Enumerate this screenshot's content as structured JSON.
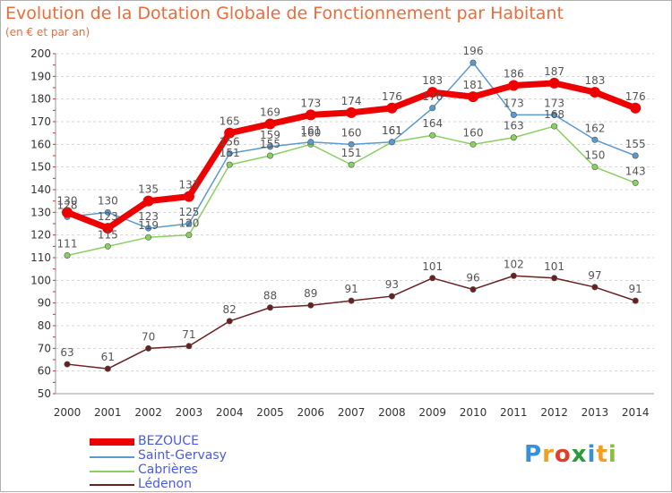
{
  "title": "Evolution de la Dotation Globale de Fonctionnement par Habitant",
  "subtitle": "(en € et par an)",
  "logo": {
    "text": "Proxiti",
    "letters": [
      "P",
      "r",
      "o",
      "x",
      "i",
      "t",
      "i"
    ],
    "colors": [
      "#3a8fd6",
      "#f0a020",
      "#e0402a",
      "#2a9a3a",
      "#3a8fd6",
      "#f0a020",
      "#8ac03a"
    ]
  },
  "chart_data": {
    "type": "line",
    "x": [
      "2000",
      "2001",
      "2002",
      "2003",
      "2004",
      "2005",
      "2006",
      "2007",
      "2008",
      "2009",
      "2010",
      "2011",
      "2012",
      "2013",
      "2014"
    ],
    "ylim": [
      50,
      200
    ],
    "yticks": [
      "50",
      "60",
      "70",
      "80",
      "90",
      "100",
      "110",
      "120",
      "130",
      "140",
      "150",
      "160",
      "170",
      "180",
      "190",
      "200"
    ],
    "grid": "horizontal dashed",
    "legend_position": "bottom-left",
    "series": [
      {
        "name": "BEZOUCE",
        "color": "#ee0000",
        "text_color": "#4a5ae8",
        "width": "thick",
        "values": [
          130,
          123,
          135,
          137,
          165,
          169,
          173,
          174,
          176,
          183,
          181,
          186,
          187,
          183,
          176
        ],
        "labels": [
          "130",
          "123",
          "135",
          "137",
          "165",
          "169",
          "173",
          "174",
          "176",
          "183",
          "181",
          "186",
          "187",
          "183",
          "176"
        ]
      },
      {
        "name": "Saint-Gervasy",
        "color": "#5a9ad0",
        "text_color": "#4a5ae8",
        "width": "thin",
        "values": [
          128,
          130,
          123,
          125,
          156,
          159,
          161,
          160,
          161,
          176,
          196,
          173,
          173,
          162,
          155
        ],
        "labels": [
          "128",
          "130",
          "123",
          "125",
          "156",
          "159",
          "161",
          "160",
          "161",
          "176",
          "196",
          "173",
          "173",
          "162",
          "155"
        ]
      },
      {
        "name": "Cabrières",
        "color": "#88d060",
        "text_color": "#4a5ae8",
        "width": "thin",
        "values": [
          111,
          115,
          119,
          120,
          151,
          155,
          160,
          151,
          161,
          164,
          160,
          163,
          168,
          150,
          143
        ],
        "labels": [
          "111",
          "115",
          "119",
          "120",
          "151",
          "155",
          "160",
          "151",
          "161",
          "164",
          "160",
          "163",
          "168",
          "150",
          "143"
        ]
      },
      {
        "name": "Lédenon",
        "color": "#6a2020",
        "text_color": "#4a5ae8",
        "width": "thin",
        "values": [
          63,
          61,
          70,
          71,
          82,
          88,
          89,
          91,
          93,
          101,
          96,
          102,
          101,
          97,
          91
        ],
        "labels": [
          "63",
          "61",
          "70",
          "71",
          "82",
          "88",
          "89",
          "91",
          "93",
          "101",
          "96",
          "102",
          "101",
          "97",
          "91"
        ]
      }
    ]
  }
}
